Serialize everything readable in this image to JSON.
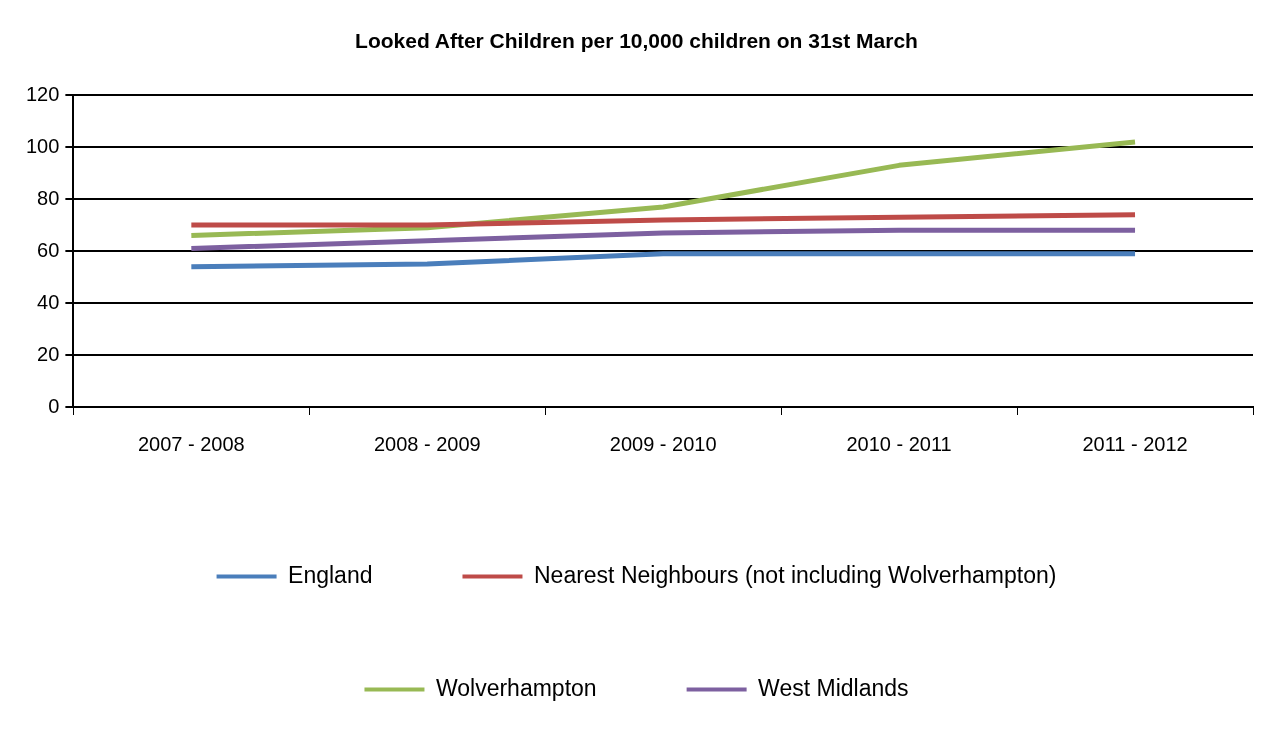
{
  "chart_data": {
    "type": "line",
    "title": "Looked After Children per 10,000 children on 31st March",
    "categories": [
      "2007 - 2008",
      "2008 - 2009",
      "2009 - 2010",
      "2010 - 2011",
      "2011 - 2012"
    ],
    "series": [
      {
        "name": "England",
        "color": "#4a7ebb",
        "values": [
          54,
          55,
          59,
          59,
          59
        ]
      },
      {
        "name": "Nearest Neighbours (not including Wolverhampton)",
        "color": "#be4b48",
        "values": [
          70,
          70,
          72,
          73,
          74
        ]
      },
      {
        "name": "Wolverhampton",
        "color": "#98b954",
        "values": [
          66,
          69,
          77,
          93,
          102
        ]
      },
      {
        "name": "West Midlands",
        "color": "#7d60a0",
        "values": [
          61,
          64,
          67,
          68,
          68
        ]
      }
    ],
    "ylim": [
      0,
      120
    ],
    "yticks": [
      0,
      20,
      40,
      60,
      80,
      100,
      120
    ],
    "grid": "y",
    "legend": "bottom",
    "marker": "none",
    "line_style": "solid"
  }
}
